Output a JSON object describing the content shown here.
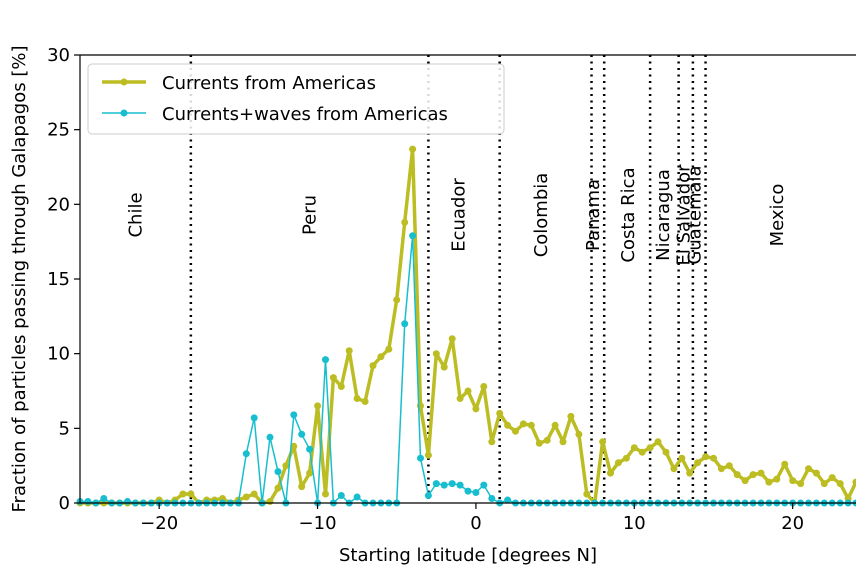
{
  "chart_data": {
    "type": "line",
    "xlabel": "Starting latitude [degrees N]",
    "ylabel": "Fraction of particles passing through Galapagos [%]",
    "xlim": [
      -25,
      24
    ],
    "ylim": [
      0,
      30
    ],
    "xticks": [
      -20,
      -10,
      0,
      10,
      20
    ],
    "xtick_labels": [
      "−20",
      "−10",
      "0",
      "10",
      "20"
    ],
    "yticks": [
      0,
      5,
      10,
      15,
      20,
      25,
      30
    ],
    "ytick_labels": [
      "0",
      "5",
      "10",
      "15",
      "20",
      "25",
      "30"
    ],
    "grid": false,
    "legend_position": "top-left",
    "boundaries": [
      -18,
      -3,
      1.5,
      7.3,
      8.1,
      11,
      12.8,
      13.7,
      14.5
    ],
    "regions": [
      {
        "label": "Chile",
        "x": -21.5
      },
      {
        "label": "Peru",
        "x": -10.5
      },
      {
        "label": "Ecuador",
        "x": -1.1
      },
      {
        "label": "Colombia",
        "x": 4.1
      },
      {
        "label": "Panama",
        "x": 7.4
      },
      {
        "label": "Costa Rica",
        "x": 9.6
      },
      {
        "label": "Nicaragua",
        "x": 11.8
      },
      {
        "label": "El Salvador",
        "x": 13.1
      },
      {
        "label": "Guatemala",
        "x": 13.8
      },
      {
        "label": "Mexico",
        "x": 19.0
      }
    ],
    "series": [
      {
        "name": "Currents from Americas",
        "color": "#bcbd22",
        "x": [
          -25,
          -24.5,
          -24,
          -23.5,
          -23,
          -22.5,
          -22,
          -21.5,
          -21,
          -20.5,
          -20,
          -19.5,
          -19,
          -18.5,
          -18,
          -17.5,
          -17,
          -16.5,
          -16,
          -15.5,
          -15,
          -14.5,
          -14,
          -13.5,
          -13,
          -12.5,
          -12,
          -11.5,
          -11,
          -10.5,
          -10,
          -9.5,
          -9,
          -8.5,
          -8,
          -7.5,
          -7,
          -6.5,
          -6,
          -5.5,
          -5,
          -4.5,
          -4,
          -3.5,
          -3,
          -2.5,
          -2,
          -1.5,
          -1,
          -0.5,
          0,
          0.5,
          1,
          1.5,
          2,
          2.5,
          3,
          3.5,
          4,
          4.5,
          5,
          5.5,
          6,
          6.5,
          7,
          7.5,
          8,
          8.5,
          9,
          9.5,
          10,
          10.5,
          11,
          11.5,
          12,
          12.5,
          13,
          13.5,
          14,
          14.5,
          15,
          15.5,
          16,
          16.5,
          17,
          17.5,
          18,
          18.5,
          19,
          19.5,
          20,
          20.5,
          21,
          21.5,
          22,
          22.5,
          23,
          23.5,
          24
        ],
        "values": [
          0,
          0,
          0,
          0,
          0,
          0,
          0,
          0,
          0,
          0,
          0.2,
          0,
          0.2,
          0.6,
          0.6,
          0,
          0.2,
          0.2,
          0.3,
          0,
          0.2,
          0.4,
          0.6,
          0,
          0.1,
          1.0,
          2.5,
          3.8,
          1.1,
          2.0,
          6.5,
          0.6,
          8.4,
          7.8,
          10.2,
          7.0,
          6.8,
          9.2,
          9.8,
          10.3,
          13.6,
          18.8,
          23.7,
          6.5,
          3.2,
          10.0,
          9.1,
          11.0,
          7.0,
          7.5,
          6.3,
          7.8,
          4.1,
          6.0,
          5.2,
          4.8,
          5.3,
          5.2,
          4.0,
          4.2,
          5.2,
          4.1,
          5.8,
          4.6,
          0.6,
          0,
          4.1,
          2.0,
          2.7,
          3.0,
          3.7,
          3.4,
          3.7,
          4.1,
          3.4,
          2.3,
          3.0,
          2.0,
          2.7,
          3.1,
          3.0,
          2.3,
          2.5,
          1.9,
          1.5,
          1.9,
          2.0,
          1.4,
          1.6,
          2.6,
          1.5,
          1.3,
          2.3,
          2.0,
          1.3,
          1.7,
          1.3,
          0.3,
          1.4
        ]
      },
      {
        "name": "Currents+waves from Americas",
        "color": "#17becf",
        "x": [
          -25,
          -24.5,
          -24,
          -23.5,
          -23,
          -22.5,
          -22,
          -21.5,
          -21,
          -20.5,
          -20,
          -19.5,
          -19,
          -18.5,
          -18,
          -17.5,
          -17,
          -16.5,
          -16,
          -15.5,
          -15,
          -14.5,
          -14,
          -13.5,
          -13,
          -12.5,
          -12,
          -11.5,
          -11,
          -10.5,
          -10,
          -9.5,
          -9,
          -8.5,
          -8,
          -7.5,
          -7,
          -6.5,
          -6,
          -5.5,
          -5,
          -4.5,
          -4,
          -3.5,
          -3,
          -2.5,
          -2,
          -1.5,
          -1,
          -0.5,
          0,
          0.5,
          1,
          1.5,
          2,
          2.5,
          3,
          3.5,
          4,
          4.5,
          5,
          5.5,
          6,
          6.5,
          7,
          7.5,
          8,
          8.5,
          9,
          9.5,
          10,
          10.5,
          11,
          11.5,
          12,
          12.5,
          13,
          13.5,
          14,
          14.5,
          15,
          15.5,
          16,
          16.5,
          17,
          17.5,
          18,
          18.5,
          19,
          19.5,
          20,
          20.5,
          21,
          21.5,
          22,
          22.5,
          23,
          23.5,
          24
        ],
        "values": [
          0.1,
          0.1,
          0,
          0.3,
          0,
          0,
          0.1,
          0,
          0,
          0,
          0,
          0,
          0,
          0,
          0,
          0,
          0,
          0,
          0,
          0,
          0,
          3.3,
          5.7,
          0,
          4.4,
          2.1,
          0,
          5.9,
          4.6,
          3.6,
          0,
          9.6,
          0,
          0.5,
          0,
          0.4,
          0,
          0,
          0,
          0,
          0,
          12.0,
          17.9,
          3.0,
          0.5,
          1.3,
          1.2,
          1.3,
          1.2,
          0.8,
          0.7,
          1.2,
          0.3,
          0,
          0.2,
          0,
          0,
          0,
          0,
          0,
          0,
          0,
          0,
          0,
          0,
          0,
          0,
          0,
          0,
          0,
          0,
          0,
          0,
          0,
          0,
          0,
          0,
          0,
          0,
          0,
          0,
          0,
          0,
          0,
          0,
          0,
          0,
          0,
          0,
          0,
          0,
          0,
          0,
          0,
          0,
          0,
          0,
          0,
          0
        ]
      }
    ]
  }
}
